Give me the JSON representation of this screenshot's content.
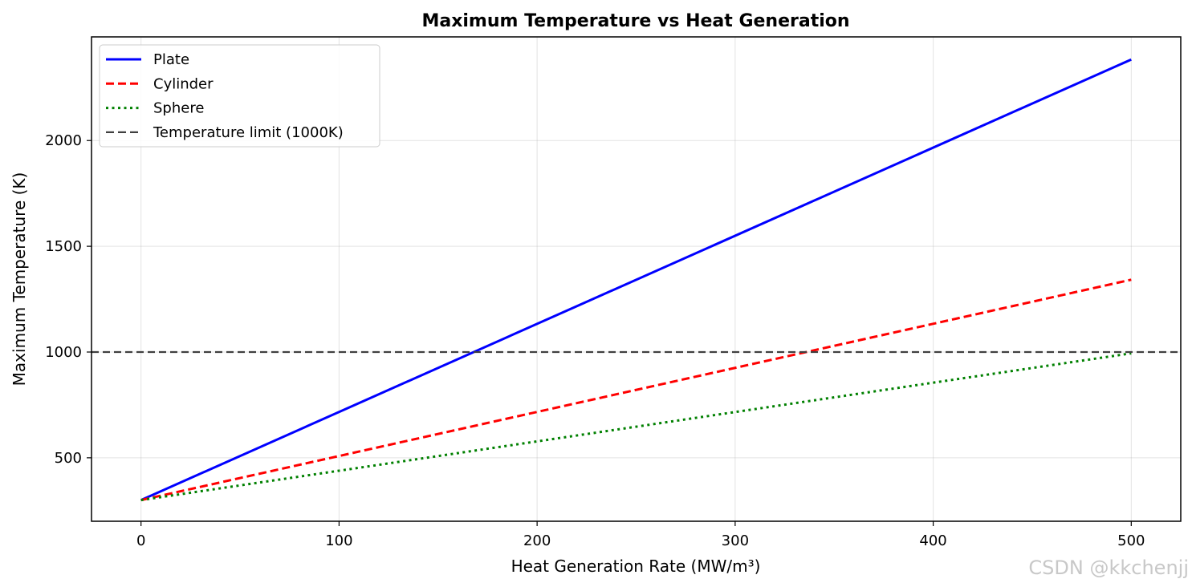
{
  "chart_data": {
    "type": "line",
    "title": "Maximum Temperature vs Heat Generation",
    "xlabel": "Heat Generation Rate (MW/m³)",
    "ylabel": "Maximum Temperature (K)",
    "xlim": [
      -25,
      525
    ],
    "ylim": [
      200,
      2490
    ],
    "xticks": [
      0,
      100,
      200,
      300,
      400,
      500
    ],
    "yticks": [
      500,
      1000,
      1500,
      2000
    ],
    "grid": true,
    "legend_position": "top-left",
    "series": [
      {
        "name": "Plate",
        "x": [
          0,
          500
        ],
        "y": [
          300,
          2383
        ],
        "color": "#0000ff",
        "style": "solid"
      },
      {
        "name": "Cylinder",
        "x": [
          0,
          500
        ],
        "y": [
          300,
          1342
        ],
        "color": "#ff0000",
        "style": "dashed"
      },
      {
        "name": "Sphere",
        "x": [
          0,
          500
        ],
        "y": [
          300,
          994
        ],
        "color": "#008000",
        "style": "dotted"
      }
    ],
    "hline": {
      "name": "Temperature limit (1000K)",
      "y": 1000,
      "color": "#404040",
      "style": "dashed"
    }
  },
  "watermark": "CSDN @kkchenjj"
}
